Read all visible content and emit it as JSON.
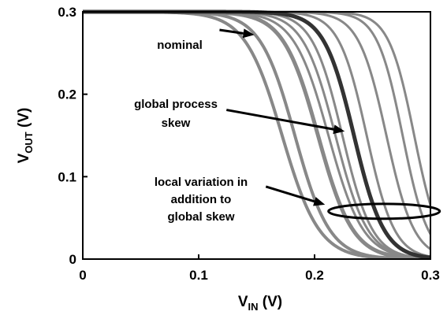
{
  "chart_data": {
    "type": "line",
    "xlabel": {
      "main": "V",
      "sub": "IN",
      "unit": " (V)"
    },
    "ylabel": {
      "main": "V",
      "sub": "OUT",
      "unit": " (V)"
    },
    "xlim": [
      0,
      0.3
    ],
    "ylim": [
      0,
      0.3
    ],
    "xticks": [
      0,
      0.1,
      0.2,
      0.3
    ],
    "yticks": [
      0,
      0.1,
      0.2,
      0.3
    ],
    "xtick_labels": [
      "0",
      "0.1",
      "0.2",
      "0.3"
    ],
    "ytick_labels": [
      "0",
      "0.1",
      "0.2",
      "0.3"
    ],
    "grid": false,
    "series": [
      {
        "role": "local",
        "color": "#888888",
        "width": 4,
        "vmid": 0.172,
        "steep": 0.016
      },
      {
        "role": "local",
        "color": "#888888",
        "width": 4,
        "vmid": 0.183,
        "steep": 0.015
      },
      {
        "role": "nominal",
        "color": "#888888",
        "width": 5,
        "vmid": 0.203,
        "steep": 0.015
      },
      {
        "role": "local",
        "color": "#888888",
        "width": 3,
        "vmid": 0.212,
        "steep": 0.015
      },
      {
        "role": "local",
        "color": "#888888",
        "width": 3,
        "vmid": 0.218,
        "steep": 0.014
      },
      {
        "role": "local",
        "color": "#888888",
        "width": 3,
        "vmid": 0.224,
        "steep": 0.013
      },
      {
        "role": "global_skew",
        "color": "#333333",
        "width": 5,
        "vmid": 0.234,
        "steep": 0.013
      },
      {
        "role": "local",
        "color": "#888888",
        "width": 3,
        "vmid": 0.245,
        "steep": 0.012
      },
      {
        "role": "local",
        "color": "#888888",
        "width": 3,
        "vmid": 0.262,
        "steep": 0.012
      },
      {
        "role": "local",
        "color": "#888888",
        "width": 3,
        "vmid": 0.276,
        "steep": 0.011
      },
      {
        "role": "local",
        "color": "#888888",
        "width": 3,
        "vmid": 0.286,
        "steep": 0.011
      }
    ],
    "annotations": [
      {
        "lines": [
          "nominal"
        ],
        "tip": [
          0.148,
          0.272
        ],
        "tail": [
          0.118,
          0.278
        ]
      },
      {
        "lines": [
          "global process",
          "skew"
        ],
        "tip": [
          0.226,
          0.155
        ],
        "tail": [
          0.124,
          0.181
        ]
      },
      {
        "lines": [
          "local variation in",
          "addition to",
          "global skew"
        ],
        "tip": [
          0.209,
          0.066
        ],
        "tail": [
          0.158,
          0.088
        ]
      }
    ],
    "ellipse": {
      "cx": 0.26,
      "cy": 0.058,
      "rx": 0.048,
      "ry": 0.009
    }
  }
}
